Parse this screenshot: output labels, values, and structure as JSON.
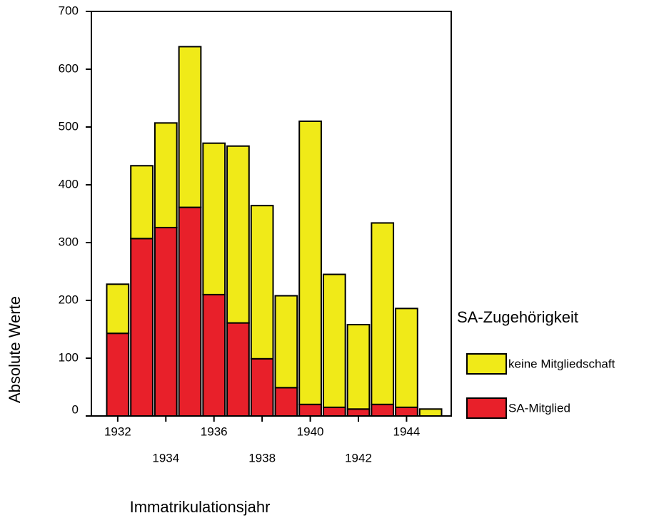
{
  "chart_data": {
    "type": "stacked_bar",
    "categories": [
      "1932",
      null,
      "1934",
      null,
      "1936",
      null,
      "1938",
      null,
      "1940",
      null,
      "1942",
      null,
      "1944",
      null
    ],
    "series": [
      {
        "name": "SA-Mitglied",
        "color": "#e8202a",
        "values": [
          143,
          307,
          326,
          361,
          210,
          161,
          99,
          49,
          20,
          15,
          12,
          20,
          15,
          0
        ]
      },
      {
        "name": "keine Mitgliedschaft",
        "color": "#f0ea18",
        "values": [
          85,
          126,
          181,
          278,
          262,
          306,
          265,
          159,
          490,
          230,
          146,
          314,
          171,
          12
        ]
      }
    ],
    "ylim": [
      0,
      700
    ],
    "yticks": [
      0,
      100,
      200,
      300,
      400,
      500,
      600,
      700
    ],
    "ylabel": "Absolute Werte",
    "xlabel": "Immatrikulationsjahr",
    "legend_title": "SA-Zugehörigkeit",
    "legend": "right"
  }
}
